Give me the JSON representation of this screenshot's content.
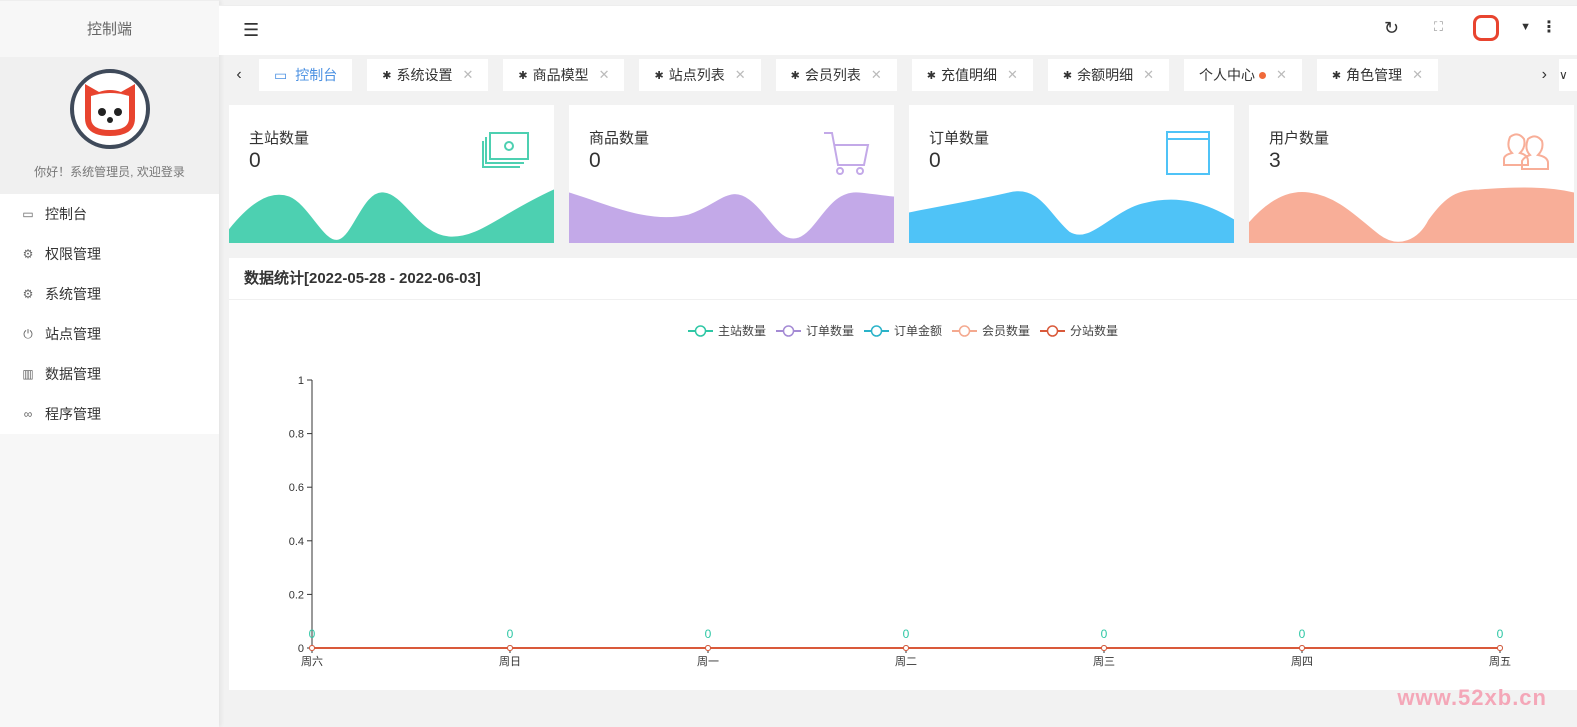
{
  "sidebar": {
    "brand": "控制端",
    "welcome": "你好！系统管理员, 欢迎登录",
    "items": [
      {
        "label": "控制台",
        "icon": "monitor-icon"
      },
      {
        "label": "权限管理",
        "icon": "gear-icon"
      },
      {
        "label": "系统管理",
        "icon": "gear-icon"
      },
      {
        "label": "站点管理",
        "icon": "power-icon"
      },
      {
        "label": "数据管理",
        "icon": "table-icon"
      },
      {
        "label": "程序管理",
        "icon": "link-icon"
      }
    ]
  },
  "tabs": [
    {
      "label": "控制台",
      "active": true
    },
    {
      "label": "系统设置"
    },
    {
      "label": "商品模型"
    },
    {
      "label": "站点列表"
    },
    {
      "label": "会员列表"
    },
    {
      "label": "充值明细"
    },
    {
      "label": "余额明细"
    },
    {
      "label": "个人中心",
      "dot": true
    },
    {
      "label": "角色管理"
    }
  ],
  "cards": [
    {
      "title": "主站数量",
      "value": "0",
      "color": "#4dd0b1",
      "icon": "money-icon"
    },
    {
      "title": "商品数量",
      "value": "0",
      "color": "#c3a9e8",
      "icon": "cart-icon"
    },
    {
      "title": "订单数量",
      "value": "0",
      "color": "#4fc3f7",
      "icon": "window-icon"
    },
    {
      "title": "用户数量",
      "value": "3",
      "color": "#f8ae98",
      "icon": "users-icon"
    }
  ],
  "panel": {
    "title": "数据统计[2022-05-28 - 2022-06-03]"
  },
  "chart_data": {
    "type": "line",
    "categories": [
      "周六",
      "周日",
      "周一",
      "周二",
      "周三",
      "周四",
      "周五"
    ],
    "ylim": [
      0,
      1
    ],
    "yticks": [
      "0",
      "0.2",
      "0.4",
      "0.6",
      "0.8",
      "1"
    ],
    "legend_position": "top",
    "series": [
      {
        "name": "主站数量",
        "values": [
          0,
          0,
          0,
          0,
          0,
          0,
          0
        ],
        "color": "#2ec7a5",
        "labels": true
      },
      {
        "name": "订单数量",
        "values": [
          0,
          0,
          0,
          0,
          0,
          0,
          0
        ],
        "color": "#a48ad4"
      },
      {
        "name": "订单金额",
        "values": [
          0,
          0,
          0,
          0,
          0,
          0,
          0
        ],
        "color": "#2ab3c9"
      },
      {
        "name": "会员数量",
        "values": [
          0,
          0,
          0,
          0,
          0,
          0,
          0
        ],
        "color": "#f4a98f"
      },
      {
        "name": "分站数量",
        "values": [
          0,
          0,
          0,
          0,
          0,
          0,
          0
        ],
        "color": "#d9593a"
      }
    ]
  },
  "watermark": "www.52xb.cn"
}
